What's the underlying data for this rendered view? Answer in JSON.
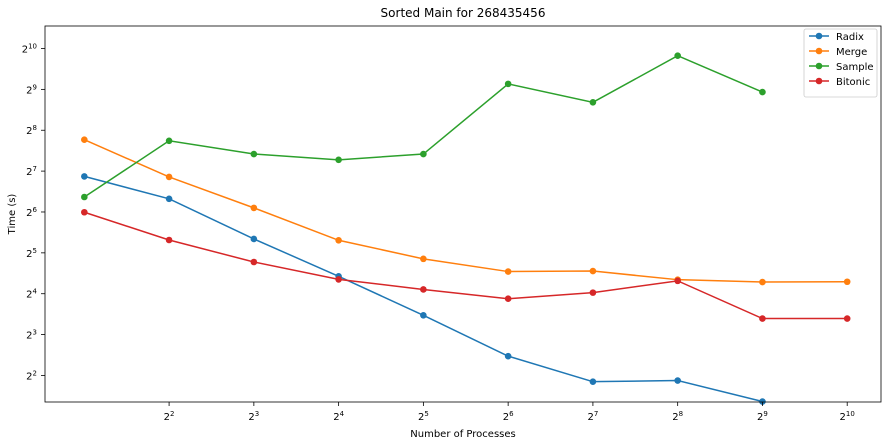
{
  "chart_data": {
    "type": "line",
    "title": "Sorted Main for 268435456",
    "xlabel": "Number of Processes",
    "ylabel": "Time (s)",
    "x_scale": "log2",
    "y_scale": "log2",
    "x": [
      2,
      4,
      8,
      16,
      32,
      64,
      128,
      256,
      512,
      1024
    ],
    "x_ticks": [
      {
        "value": 4,
        "base": "2",
        "exp": "2"
      },
      {
        "value": 8,
        "base": "2",
        "exp": "3"
      },
      {
        "value": 16,
        "base": "2",
        "exp": "4"
      },
      {
        "value": 32,
        "base": "2",
        "exp": "5"
      },
      {
        "value": 64,
        "base": "2",
        "exp": "6"
      },
      {
        "value": 128,
        "base": "2",
        "exp": "7"
      },
      {
        "value": 256,
        "base": "2",
        "exp": "8"
      },
      {
        "value": 512,
        "base": "2",
        "exp": "9"
      },
      {
        "value": 1024,
        "base": "2",
        "exp": "10"
      }
    ],
    "y_ticks": [
      {
        "value": 4,
        "base": "2",
        "exp": "2"
      },
      {
        "value": 8,
        "base": "2",
        "exp": "3"
      },
      {
        "value": 16,
        "base": "2",
        "exp": "4"
      },
      {
        "value": 32,
        "base": "2",
        "exp": "5"
      },
      {
        "value": 64,
        "base": "2",
        "exp": "6"
      },
      {
        "value": 128,
        "base": "2",
        "exp": "7"
      },
      {
        "value": 256,
        "base": "2",
        "exp": "8"
      },
      {
        "value": 512,
        "base": "2",
        "exp": "9"
      },
      {
        "value": 1024,
        "base": "2",
        "exp": "10"
      }
    ],
    "xlim": [
      1.45,
      1350
    ],
    "ylim": [
      2.55,
      1500
    ],
    "grid": false,
    "legend_position": "top-right",
    "series": [
      {
        "name": "Radix",
        "color": "#1f77b4",
        "values": [
          117,
          80,
          40.5,
          21.5,
          11.1,
          5.55,
          3.6,
          3.67,
          2.57,
          null
        ]
      },
      {
        "name": "Merge",
        "color": "#ff7f0e",
        "values": [
          218,
          116,
          68.6,
          39.6,
          28.9,
          23.3,
          23.5,
          20.3,
          19.5,
          19.6
        ]
      },
      {
        "name": "Sample",
        "color": "#2ca02c",
        "values": [
          82.5,
          214,
          171,
          155,
          171,
          562,
          411,
          906,
          489,
          null
        ]
      },
      {
        "name": "Bitonic",
        "color": "#d62728",
        "values": [
          63.7,
          39.8,
          27.4,
          20.4,
          17.2,
          14.7,
          16.3,
          19.9,
          10.5,
          10.5
        ]
      }
    ]
  }
}
